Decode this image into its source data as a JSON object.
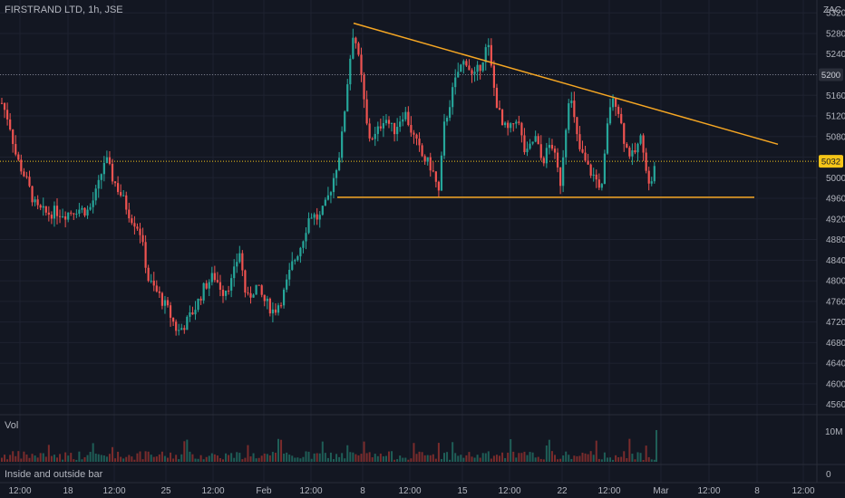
{
  "header": {
    "symbol": "FIRSTRAND LTD",
    "interval": "1h",
    "exchange": "JSE",
    "currency": "ZAC"
  },
  "volume_pane": {
    "title": "Vol",
    "scale_label": "10M",
    "zero_label": "0"
  },
  "indicator_pane": {
    "title": "Inside and outside bar"
  },
  "colors": {
    "background": "#131722",
    "up": "#26a69a",
    "down": "#ef5350",
    "drawing": "#f5a623",
    "price_tag": "#f5c518",
    "grid": "#1e2230",
    "text": "#b2b5be"
  },
  "chart_data": {
    "type": "candlestick",
    "title": "",
    "xlabel": "",
    "ylabel": "",
    "y_ticks": [
      4560,
      4600,
      4640,
      4680,
      4720,
      4760,
      4800,
      4840,
      4880,
      4920,
      4960,
      5000,
      5040,
      5080,
      5120,
      5160,
      5200,
      5240,
      5280,
      5320
    ],
    "y_tick_labels": [
      "4560",
      "4600",
      "4640",
      "4680",
      "4720",
      "4760",
      "4800",
      "4840",
      "4880",
      "4920",
      "4960",
      "5000",
      "",
      "5080",
      "5120",
      "5160",
      "",
      "5240",
      "5280",
      "5320"
    ],
    "ylim": [
      4540,
      5345
    ],
    "x_tick_labels": [
      "12:00",
      "18",
      "12:00",
      "25",
      "12:00",
      "Feb",
      "12:00",
      "8",
      "12:00",
      "15",
      "12:00",
      "22",
      "12:00",
      "Mar",
      "12:00",
      "8",
      "12:00"
    ],
    "markers": [
      {
        "label": "5200",
        "value": 5200,
        "style": "dotted",
        "color": "#787b86"
      },
      {
        "label": "5032",
        "value": 5032,
        "style": "dotted",
        "color": "#f5c518",
        "current": true
      }
    ],
    "trendlines": [
      {
        "name": "descending resistance",
        "from": {
          "bar": 390,
          "value": 5300
        },
        "to": {
          "bar": 858,
          "value": 5065
        }
      },
      {
        "name": "horizontal support",
        "from": {
          "bar": 372,
          "value": 4962
        },
        "to": {
          "bar": 832,
          "value": 4962
        }
      }
    ],
    "price_path": [
      [
        2,
        5145
      ],
      [
        10,
        5110
      ],
      [
        18,
        5040
      ],
      [
        28,
        5000
      ],
      [
        40,
        4940
      ],
      [
        52,
        4930
      ],
      [
        62,
        4935
      ],
      [
        72,
        4930
      ],
      [
        85,
        4940
      ],
      [
        98,
        4935
      ],
      [
        108,
        4980
      ],
      [
        116,
        5040
      ],
      [
        124,
        5000
      ],
      [
        134,
        4965
      ],
      [
        144,
        4925
      ],
      [
        154,
        4900
      ],
      [
        164,
        4800
      ],
      [
        176,
        4770
      ],
      [
        186,
        4740
      ],
      [
        196,
        4700
      ],
      [
        206,
        4720
      ],
      [
        216,
        4750
      ],
      [
        226,
        4790
      ],
      [
        236,
        4810
      ],
      [
        246,
        4780
      ],
      [
        256,
        4800
      ],
      [
        264,
        4860
      ],
      [
        272,
        4760
      ],
      [
        282,
        4790
      ],
      [
        292,
        4760
      ],
      [
        302,
        4740
      ],
      [
        312,
        4770
      ],
      [
        322,
        4830
      ],
      [
        332,
        4870
      ],
      [
        342,
        4930
      ],
      [
        352,
        4920
      ],
      [
        360,
        4950
      ],
      [
        368,
        5000
      ],
      [
        376,
        5060
      ],
      [
        384,
        5200
      ],
      [
        390,
        5290
      ],
      [
        398,
        5200
      ],
      [
        406,
        5080
      ],
      [
        414,
        5080
      ],
      [
        424,
        5120
      ],
      [
        434,
        5090
      ],
      [
        446,
        5130
      ],
      [
        456,
        5080
      ],
      [
        466,
        5040
      ],
      [
        476,
        5020
      ],
      [
        484,
        4970
      ],
      [
        490,
        5100
      ],
      [
        498,
        5160
      ],
      [
        506,
        5210
      ],
      [
        514,
        5230
      ],
      [
        522,
        5190
      ],
      [
        530,
        5220
      ],
      [
        538,
        5260
      ],
      [
        546,
        5160
      ],
      [
        554,
        5100
      ],
      [
        562,
        5090
      ],
      [
        570,
        5120
      ],
      [
        580,
        5040
      ],
      [
        590,
        5080
      ],
      [
        598,
        5030
      ],
      [
        608,
        5070
      ],
      [
        618,
        4990
      ],
      [
        628,
        5170
      ],
      [
        638,
        5060
      ],
      [
        648,
        5020
      ],
      [
        656,
        5000
      ],
      [
        664,
        4980
      ],
      [
        672,
        5140
      ],
      [
        680,
        5150
      ],
      [
        690,
        5060
      ],
      [
        698,
        5040
      ],
      [
        708,
        5080
      ],
      [
        716,
        4980
      ],
      [
        724,
        5032
      ]
    ]
  }
}
